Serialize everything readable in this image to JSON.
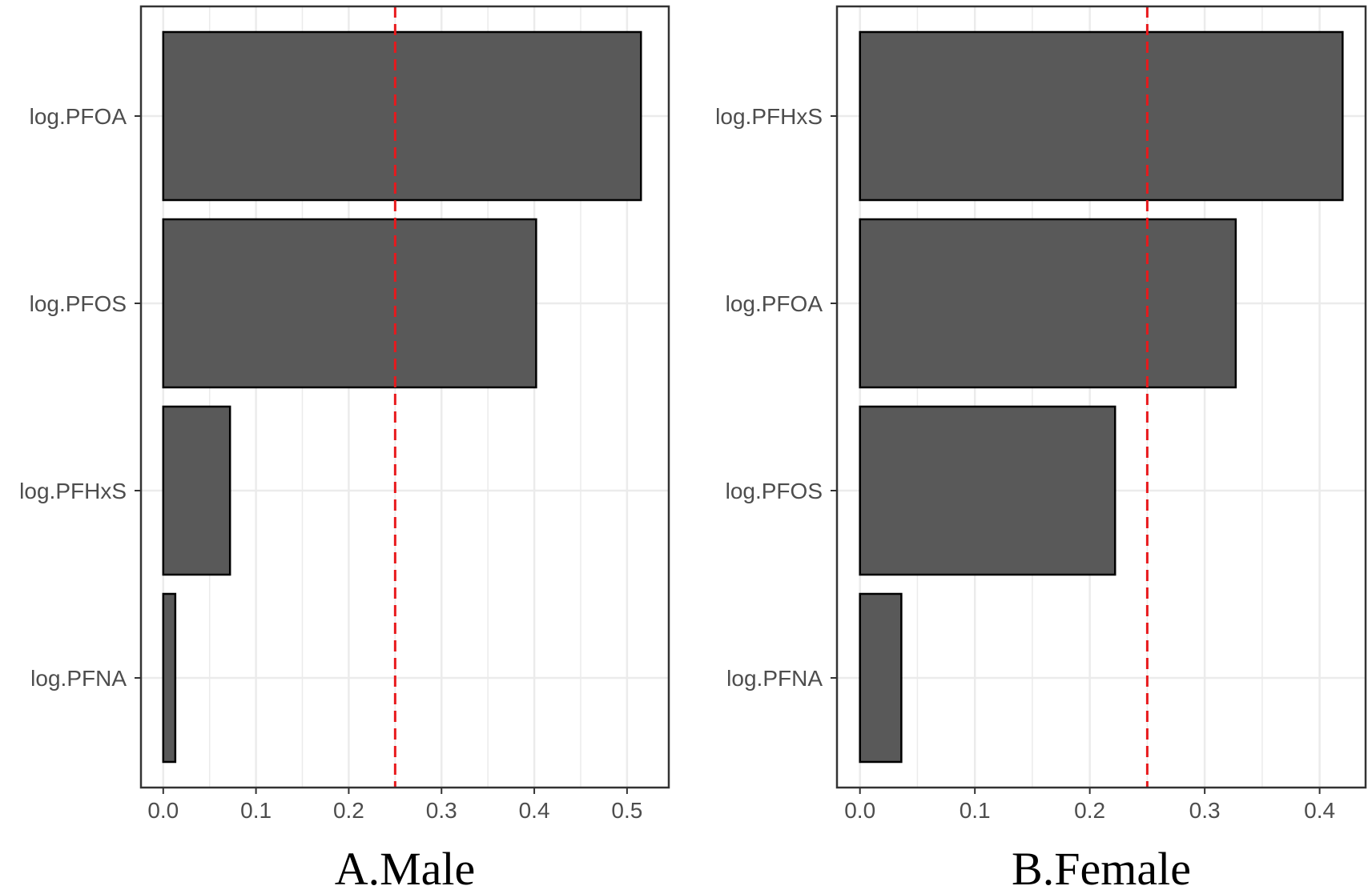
{
  "colors": {
    "bar_fill": "#595959",
    "bar_stroke": "#000000",
    "threshold_line": "#e8191c",
    "grid": "#ebebeb",
    "panel_border": "#333333"
  },
  "chart_data": [
    {
      "type": "bar",
      "orientation": "horizontal",
      "title": "A.Male",
      "categories": [
        "log.PFOA",
        "log.PFOS",
        "log.PFHxS",
        "log.PFNA"
      ],
      "values": [
        0.515,
        0.402,
        0.072,
        0.013
      ],
      "xlim": [
        -0.024,
        0.545
      ],
      "xticks": [
        0.0,
        0.1,
        0.2,
        0.3,
        0.4,
        0.5
      ],
      "xtick_labels": [
        "0.0",
        "0.1",
        "0.2",
        "0.3",
        "0.4",
        "0.5"
      ],
      "threshold": 0.25,
      "grid": true
    },
    {
      "type": "bar",
      "orientation": "horizontal",
      "title": "B.Female",
      "categories": [
        "log.PFHxS",
        "log.PFOA",
        "log.PFOS",
        "log.PFNA"
      ],
      "values": [
        0.42,
        0.327,
        0.222,
        0.036
      ],
      "xlim": [
        -0.02,
        0.44
      ],
      "xticks": [
        0.0,
        0.1,
        0.2,
        0.3,
        0.4
      ],
      "xtick_labels": [
        "0.0",
        "0.1",
        "0.2",
        "0.3",
        "0.4"
      ],
      "threshold": 0.25,
      "grid": true
    }
  ]
}
